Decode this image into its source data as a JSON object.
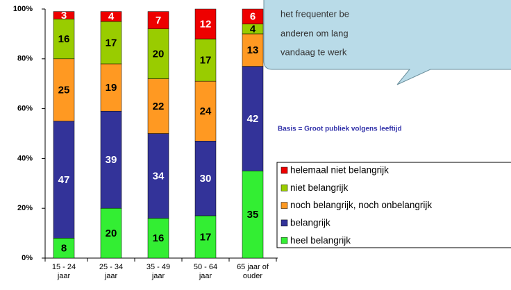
{
  "chart_data": {
    "type": "stacked_bar",
    "categories": [
      "15 - 24 jaar",
      "25 - 34 jaar",
      "35 - 49 jaar",
      "50 - 64 jaar",
      "65 jaar of ouder"
    ],
    "series": [
      {
        "name": "heel belangrijk",
        "color": "#33ee33",
        "values": [
          8,
          20,
          16,
          17,
          35
        ]
      },
      {
        "name": "belangrijk",
        "color": "#333399",
        "values": [
          47,
          39,
          34,
          30,
          42
        ]
      },
      {
        "name": "noch belangrijk, noch onbelangrijk",
        "color": "#ff9922",
        "values": [
          25,
          19,
          22,
          24,
          13
        ]
      },
      {
        "name": "niet belangrijk",
        "color": "#99cc00",
        "values": [
          16,
          17,
          20,
          17,
          4
        ]
      },
      {
        "name": "helemaal niet belangrijk",
        "color": "#ee0000",
        "values": [
          3,
          4,
          7,
          12,
          6
        ]
      }
    ],
    "ylim": [
      0,
      100
    ],
    "yticks": [
      {
        "value": 0,
        "label": "0%"
      },
      {
        "value": 20,
        "label": "20%"
      },
      {
        "value": 40,
        "label": "40%"
      },
      {
        "value": 60,
        "label": "60%"
      },
      {
        "value": 80,
        "label": "80%"
      },
      {
        "value": 100,
        "label": "100%"
      }
    ],
    "basis_note": "Basis = Groot publiek volgens leeftijd",
    "callout_lines": [
      "het frequenter be",
      "anderen om lang",
      "vandaag te werk"
    ],
    "legend": "right"
  }
}
